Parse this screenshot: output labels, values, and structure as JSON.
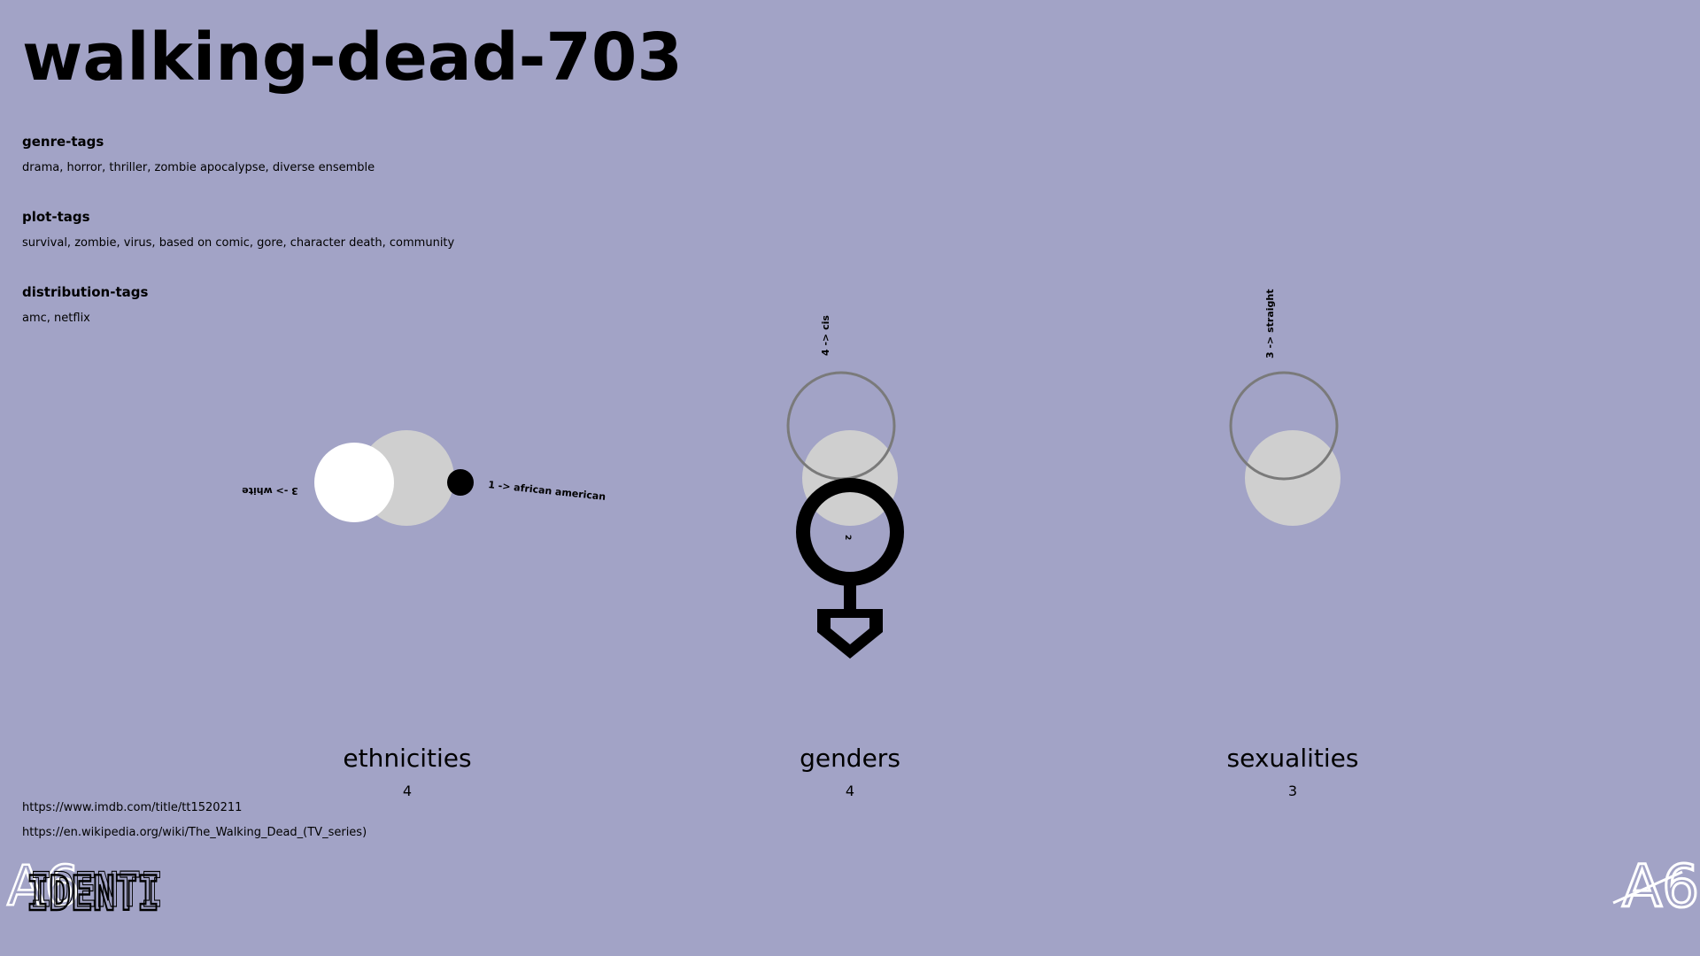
{
  "title": "walking-dead-703",
  "tags": {
    "genre": {
      "heading": "genre-tags",
      "values": "drama, horror, thriller, zombie apocalypse, diverse ensemble"
    },
    "plot": {
      "heading": "plot-tags",
      "values": "survival, zombie, virus, based on comic, gore, character death, community"
    },
    "distribution": {
      "heading": "distribution-tags",
      "values": "amc, netflix"
    }
  },
  "categories": {
    "ethnicities": {
      "label": "ethnicities",
      "count": "4"
    },
    "genders": {
      "label": "genders",
      "count": "4"
    },
    "sexualities": {
      "label": "sexualities",
      "count": "3"
    }
  },
  "annotations": {
    "white": "3 -> white",
    "african_american": "1 -> african american",
    "cis": "4 -> cis",
    "gender_inner": "2",
    "straight": "3 -> straight"
  },
  "links": {
    "imdb": "https://www.imdb.com/title/tt1520211",
    "wikipedia": "https://en.wikipedia.org/wiki/The_Walking_Dead_(TV_series)"
  },
  "logos": {
    "left_text": "IDENTI",
    "left_mark": "A6",
    "right_mark": "A6"
  },
  "colors": {
    "background": "#a2a3c6",
    "disc_grey": "#cfcfcf",
    "ring_grey": "#7a7a7a"
  }
}
